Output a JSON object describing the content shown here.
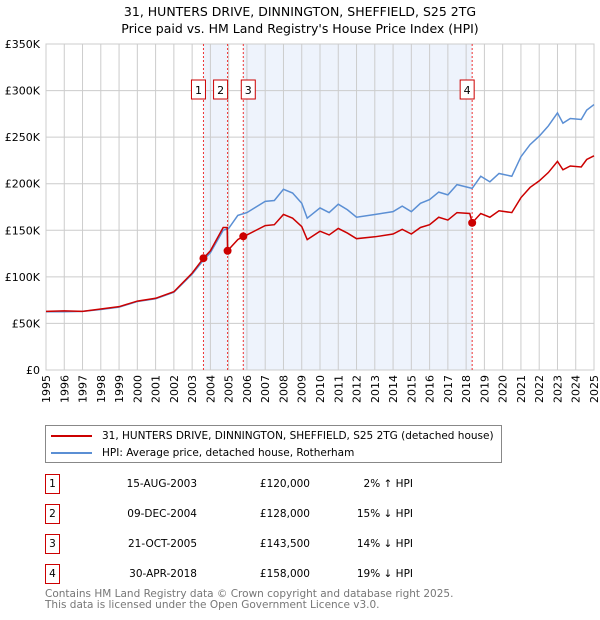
{
  "chart_data": {
    "type": "line",
    "title": "31, HUNTERS DRIVE, DINNINGTON, SHEFFIELD, S25 2TG",
    "subtitle": "Price paid vs. HM Land Registry's House Price Index (HPI)",
    "xlim": [
      1995,
      2025
    ],
    "ylim": [
      0,
      350000
    ],
    "y_ticks": [
      0,
      50000,
      100000,
      150000,
      200000,
      250000,
      300000,
      350000
    ],
    "y_tick_labels": [
      "£0",
      "£50K",
      "£100K",
      "£150K",
      "£200K",
      "£250K",
      "£300K",
      "£350K"
    ],
    "x_ticks": [
      "1995",
      "1996",
      "1997",
      "1998",
      "1999",
      "2000",
      "2001",
      "2002",
      "2003",
      "2004",
      "2005",
      "2006",
      "2007",
      "2008",
      "2009",
      "2010",
      "2011",
      "2012",
      "2013",
      "2014",
      "2015",
      "2016",
      "2017",
      "2018",
      "2019",
      "2020",
      "2021",
      "2022",
      "2023",
      "2024",
      "2025"
    ],
    "grid": true,
    "series": [
      {
        "name": "31, HUNTERS DRIVE, DINNINGTON, SHEFFIELD, S25 2TG (detached house)",
        "color": "#cc0000",
        "x": [
          1995,
          1996,
          1997,
          1998,
          1999,
          2000,
          2001,
          2002,
          2003,
          2003.62,
          2004,
          2004.7,
          2004.92,
          2004.94,
          2005.5,
          2005.8,
          2006,
          2007,
          2007.5,
          2008,
          2008.5,
          2009,
          2009.3,
          2010,
          2010.5,
          2011,
          2011.5,
          2012,
          2013,
          2014,
          2014.5,
          2015,
          2015.5,
          2016,
          2016.5,
          2017,
          2017.5,
          2018.2,
          2018.33,
          2018.8,
          2019.3,
          2019.8,
          2020.5,
          2021,
          2021.5,
          2022,
          2022.5,
          2023,
          2023.3,
          2023.7,
          2024.3,
          2024.6,
          2025
        ],
        "y": [
          63000,
          63500,
          63000,
          65500,
          68000,
          74000,
          77000,
          84000,
          104000,
          120000,
          128000,
          153000,
          153000,
          128000,
          140000,
          143500,
          145000,
          155000,
          156000,
          167000,
          163000,
          154000,
          140000,
          149000,
          145000,
          152000,
          147000,
          141000,
          143000,
          146000,
          151000,
          146000,
          153000,
          156000,
          164000,
          161000,
          169000,
          168000,
          158000,
          168000,
          164000,
          171000,
          169000,
          185000,
          196000,
          203000,
          212000,
          224000,
          215000,
          219000,
          218000,
          226000,
          230000
        ]
      },
      {
        "name": "HPI: Average price, detached house, Rotherham",
        "color": "#5b8fd4",
        "x": [
          1995,
          1996,
          1997,
          1998,
          1999,
          2000,
          2001,
          2002,
          2003,
          2003.62,
          2004,
          2004.7,
          2005,
          2005.5,
          2006,
          2007,
          2007.5,
          2008,
          2008.5,
          2009,
          2009.3,
          2010,
          2010.5,
          2011,
          2011.5,
          2012,
          2013,
          2014,
          2014.5,
          2015,
          2015.5,
          2016,
          2016.5,
          2017,
          2017.5,
          2018.33,
          2018.8,
          2019.3,
          2019.8,
          2020.5,
          2021,
          2021.5,
          2022,
          2022.5,
          2023,
          2023.3,
          2023.7,
          2024.3,
          2024.6,
          2025
        ],
        "y": [
          62500,
          62500,
          63000,
          65000,
          67500,
          73500,
          76500,
          83500,
          103000,
          118000,
          126000,
          150000,
          152000,
          166000,
          169000,
          181000,
          182000,
          194000,
          190000,
          179000,
          163000,
          174000,
          169000,
          178000,
          172000,
          164000,
          167000,
          170000,
          176000,
          170000,
          179000,
          183000,
          191000,
          188000,
          199000,
          195000,
          208000,
          202000,
          211000,
          208000,
          229000,
          242000,
          251000,
          262000,
          276000,
          265000,
          270000,
          269000,
          279000,
          285000
        ]
      }
    ],
    "sales": [
      {
        "label": "1",
        "x": 2003.62,
        "price": 120000,
        "date": "15-AUG-2003",
        "price_text": "£120,000",
        "hpi": "2% ↑ HPI"
      },
      {
        "label": "2",
        "x": 2004.94,
        "price": 128000,
        "date": "09-DEC-2004",
        "price_text": "£128,000",
        "hpi": "15% ↓ HPI"
      },
      {
        "label": "3",
        "x": 2005.8,
        "price": 143500,
        "date": "21-OCT-2005",
        "price_text": "£143,500",
        "hpi": "14% ↓ HPI"
      },
      {
        "label": "4",
        "x": 2018.33,
        "price": 158000,
        "date": "30-APR-2018",
        "price_text": "£158,000",
        "hpi": "19% ↓ HPI"
      }
    ],
    "shaded_ranges": [
      [
        2003.62,
        2004.94
      ],
      [
        2005.8,
        2018.33
      ]
    ],
    "legend_placement": "below"
  },
  "footer": {
    "line1": "Contains HM Land Registry data © Crown copyright and database right 2025.",
    "line2": "This data is licensed under the Open Government Licence v3.0."
  }
}
